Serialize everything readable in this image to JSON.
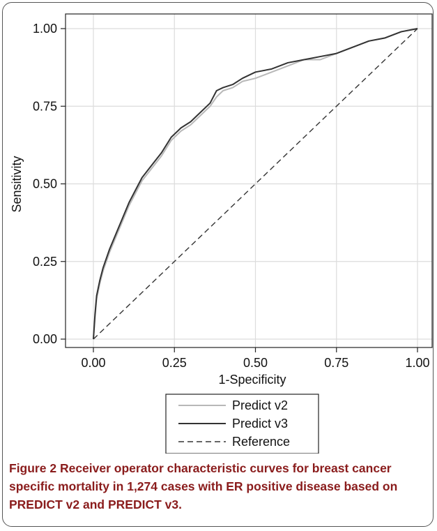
{
  "chart_data": {
    "type": "line",
    "xlabel": "1-Specificity",
    "ylabel": "Sensitivity",
    "xlim": [
      0,
      1
    ],
    "ylim": [
      0,
      1
    ],
    "xticks": [
      "0.00",
      "0.25",
      "0.50",
      "0.75",
      "1.00"
    ],
    "yticks": [
      "0.00",
      "0.25",
      "0.50",
      "0.75",
      "1.00"
    ],
    "grid": true,
    "legend_position": "bottom",
    "series": [
      {
        "name": "Predict v2",
        "color": "#b8b8b8",
        "style": "solid",
        "x": [
          0,
          0.005,
          0.01,
          0.02,
          0.03,
          0.05,
          0.07,
          0.09,
          0.11,
          0.13,
          0.15,
          0.18,
          0.21,
          0.24,
          0.27,
          0.3,
          0.33,
          0.36,
          0.38,
          0.4,
          0.43,
          0.46,
          0.5,
          0.55,
          0.6,
          0.65,
          0.7,
          0.75,
          0.8,
          0.85,
          0.9,
          0.95,
          1.0
        ],
        "y": [
          0,
          0.07,
          0.13,
          0.18,
          0.22,
          0.28,
          0.33,
          0.38,
          0.43,
          0.47,
          0.51,
          0.55,
          0.59,
          0.64,
          0.67,
          0.69,
          0.72,
          0.75,
          0.78,
          0.8,
          0.81,
          0.83,
          0.84,
          0.86,
          0.88,
          0.9,
          0.9,
          0.92,
          0.94,
          0.96,
          0.97,
          0.99,
          1.0
        ]
      },
      {
        "name": "Predict v3",
        "color": "#333333",
        "style": "solid",
        "x": [
          0,
          0.005,
          0.01,
          0.02,
          0.03,
          0.05,
          0.07,
          0.09,
          0.11,
          0.13,
          0.15,
          0.18,
          0.21,
          0.24,
          0.27,
          0.3,
          0.33,
          0.36,
          0.38,
          0.4,
          0.43,
          0.46,
          0.5,
          0.55,
          0.6,
          0.65,
          0.7,
          0.75,
          0.8,
          0.85,
          0.9,
          0.95,
          1.0
        ],
        "y": [
          0,
          0.08,
          0.14,
          0.19,
          0.23,
          0.29,
          0.34,
          0.39,
          0.44,
          0.48,
          0.52,
          0.56,
          0.6,
          0.65,
          0.68,
          0.7,
          0.73,
          0.76,
          0.8,
          0.81,
          0.82,
          0.84,
          0.86,
          0.87,
          0.89,
          0.9,
          0.91,
          0.92,
          0.94,
          0.96,
          0.97,
          0.99,
          1.0
        ]
      },
      {
        "name": "Reference",
        "color": "#333333",
        "style": "dashed",
        "x": [
          0,
          1
        ],
        "y": [
          0,
          1
        ]
      }
    ]
  },
  "caption": {
    "label": "Figure 2",
    "text": "Receiver operator characteristic curves for breast cancer specific mortality in 1,274 cases with ER positive disease based on PREDICT v2 and PREDICT v3."
  }
}
